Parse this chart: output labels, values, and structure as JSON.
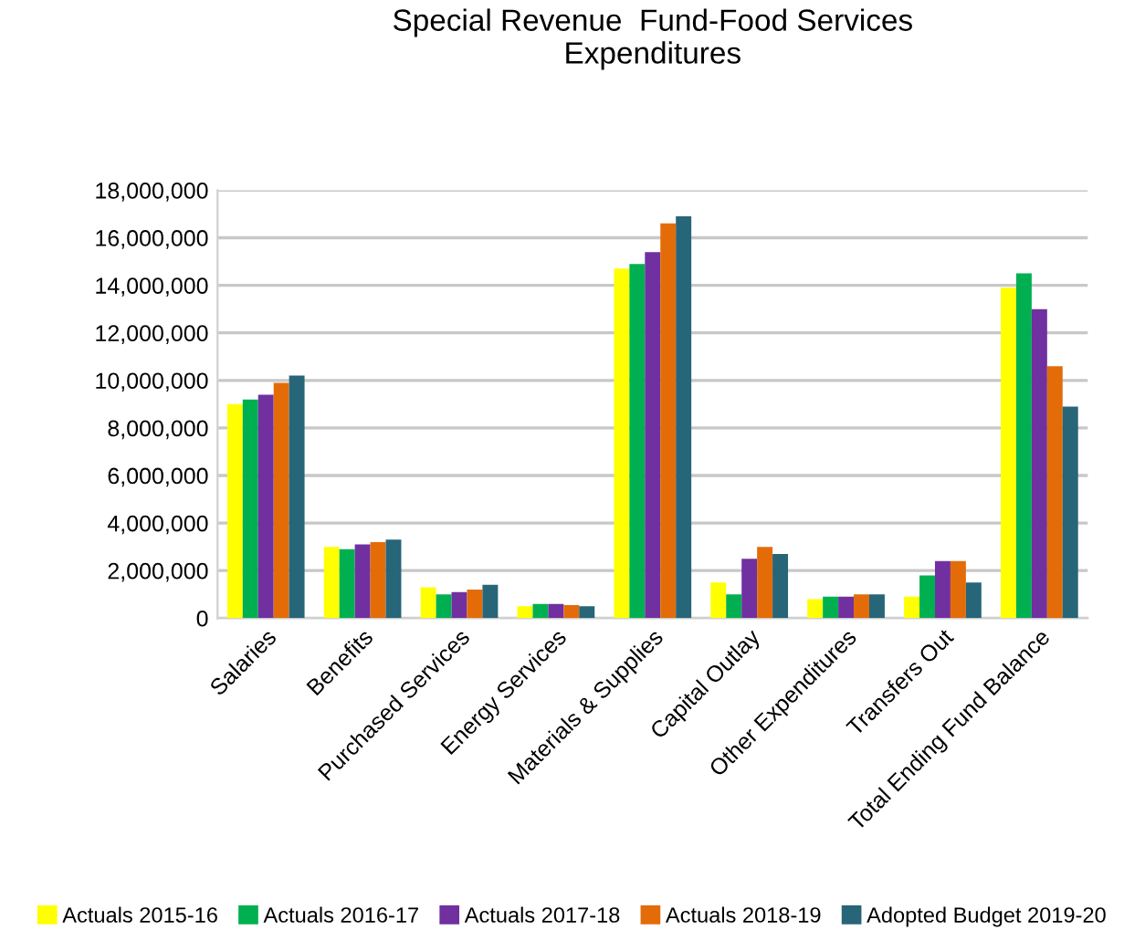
{
  "chart_data": {
    "type": "bar",
    "title": "Special Revenue  Fund-Food Services\nExpenditures",
    "categories": [
      "Salaries",
      "Benefits",
      "Purchased Services",
      "Energy Services",
      "Materials & Supplies",
      "Capital Outlay",
      "Other Expenditures",
      "Transfers Out",
      "Total Ending Fund Balance"
    ],
    "series": [
      {
        "name": "Actuals 2015-16",
        "color": "#ffff00",
        "values": [
          9000000,
          3000000,
          1300000,
          500000,
          14700000,
          1500000,
          800000,
          900000,
          13900000
        ]
      },
      {
        "name": "Actuals 2016-17",
        "color": "#00b050",
        "values": [
          9200000,
          2900000,
          1000000,
          600000,
          14900000,
          1000000,
          900000,
          1800000,
          14500000
        ]
      },
      {
        "name": "Actuals 2017-18",
        "color": "#7030a0",
        "values": [
          9400000,
          3100000,
          1100000,
          600000,
          15400000,
          2500000,
          900000,
          2400000,
          13000000
        ]
      },
      {
        "name": "Actuals 2018-19",
        "color": "#e36c09",
        "values": [
          9900000,
          3200000,
          1200000,
          550000,
          16600000,
          3000000,
          1000000,
          2400000,
          10600000
        ]
      },
      {
        "name": "Adopted Budget 2019-20",
        "color": "#276578",
        "values": [
          10200000,
          3300000,
          1400000,
          500000,
          16900000,
          2700000,
          1000000,
          1500000,
          8900000
        ]
      }
    ],
    "ylim": [
      0,
      18000000
    ],
    "yticks": [
      {
        "value": 0,
        "label": "0"
      },
      {
        "value": 2000000,
        "label": "2,000,000"
      },
      {
        "value": 4000000,
        "label": "4,000,000"
      },
      {
        "value": 6000000,
        "label": "6,000,000"
      },
      {
        "value": 8000000,
        "label": "8,000,000"
      },
      {
        "value": 10000000,
        "label": "10,000,000"
      },
      {
        "value": 12000000,
        "label": "12,000,000"
      },
      {
        "value": 14000000,
        "label": "14,000,000"
      },
      {
        "value": 16000000,
        "label": "16,000,000"
      },
      {
        "value": 18000000,
        "label": "18,000,000"
      }
    ],
    "grid": "y",
    "legend": "bottom"
  }
}
